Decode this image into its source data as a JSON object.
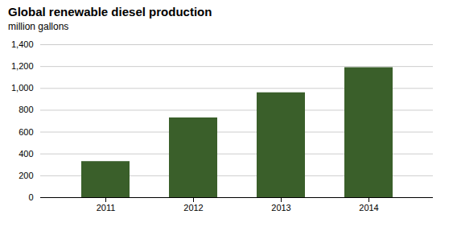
{
  "chart_data": {
    "type": "bar",
    "title": "Global renewable diesel production",
    "subtitle": "million gallons",
    "categories": [
      "2011",
      "2012",
      "2013",
      "2014"
    ],
    "values": [
      330,
      730,
      960,
      1190
    ],
    "color": "#3a5f2a",
    "ylim": [
      0,
      1400
    ],
    "yticks": [
      0,
      200,
      400,
      600,
      800,
      {
        "value": 1000,
        "label": "1,000"
      },
      {
        "value": 1200,
        "label": "1,200"
      },
      {
        "value": 1400,
        "label": "1,400"
      }
    ],
    "grid": true
  }
}
